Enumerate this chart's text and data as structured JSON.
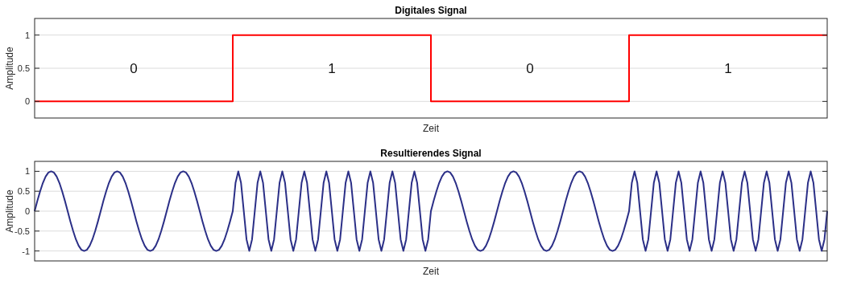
{
  "chart_data": [
    {
      "type": "step",
      "title": "Digitales Signal",
      "xlabel": "Zeit",
      "ylabel": "Amplitude",
      "color": "#ff0000",
      "categories": [
        null,
        null,
        null,
        null,
        null,
        null,
        null,
        null,
        null,
        null,
        null,
        null,
        null,
        null,
        null,
        null,
        null,
        null,
        null,
        null,
        null,
        null,
        null,
        null,
        null,
        null,
        null,
        null,
        null,
        null,
        null,
        null,
        null,
        null,
        null,
        null,
        null,
        null,
        null,
        null,
        null,
        null,
        null,
        null,
        null,
        null,
        null,
        null,
        null
      ],
      "values": [
        0,
        0,
        0,
        0,
        0,
        0,
        0,
        0,
        0,
        0,
        0,
        0,
        1,
        1,
        1,
        1,
        1,
        1,
        1,
        1,
        1,
        1,
        1,
        1,
        0,
        0,
        0,
        0,
        0,
        0,
        0,
        0,
        0,
        0,
        0,
        0,
        1,
        1,
        1,
        1,
        1,
        1,
        1,
        1,
        1,
        1,
        1,
        1,
        1
      ],
      "ylim": [
        -0.25,
        1.25
      ],
      "yticks": [
        0,
        0.5,
        1
      ],
      "grid": "y",
      "tick_labels": "y",
      "annotations": [
        "0",
        "1",
        "0",
        "1"
      ]
    },
    {
      "type": "line",
      "title": "Resultierendes Signal",
      "xlabel": "Zeit",
      "ylabel": "Amplitude",
      "color": "#2b2f87",
      "categories": [
        null,
        null,
        null,
        null,
        null,
        null,
        null,
        null,
        null,
        null,
        null,
        null,
        null,
        null,
        null,
        null,
        null,
        null,
        null,
        null,
        null,
        null,
        null,
        null,
        null,
        null,
        null,
        null,
        null,
        null,
        null,
        null,
        null,
        null,
        null,
        null,
        null,
        null,
        null,
        null,
        null,
        null,
        null,
        null,
        null,
        null,
        null,
        null,
        null,
        null,
        null,
        null,
        null,
        null,
        null,
        null,
        null,
        null,
        null,
        null,
        null,
        null,
        null,
        null,
        null,
        null,
        null,
        null,
        null,
        null,
        null,
        null,
        null,
        null,
        null,
        null,
        null,
        null,
        null,
        null,
        null,
        null,
        null,
        null,
        null,
        null,
        null,
        null,
        null,
        null,
        null,
        null,
        null,
        null,
        null,
        null,
        null,
        null,
        null,
        null,
        null,
        null,
        null,
        null,
        null,
        null,
        null,
        null,
        null,
        null,
        null,
        null,
        null,
        null,
        null,
        null,
        null,
        null,
        null,
        null,
        null,
        null,
        null,
        null,
        null,
        null,
        null,
        null,
        null,
        null,
        null,
        null,
        null,
        null,
        null,
        null,
        null,
        null,
        null,
        null,
        null,
        null,
        null,
        null,
        null,
        null,
        null,
        null,
        null,
        null,
        null,
        null,
        null,
        null,
        null,
        null,
        null,
        null,
        null,
        null,
        null,
        null,
        null,
        null,
        null,
        null,
        null,
        null,
        null,
        null,
        null,
        null,
        null,
        null,
        null,
        null,
        null,
        null,
        null,
        null,
        null,
        null,
        null,
        null,
        null,
        null,
        null,
        null,
        null,
        null,
        null,
        null,
        null,
        null,
        null,
        null,
        null,
        null,
        null,
        null,
        null,
        null,
        null,
        null,
        null,
        null,
        null,
        null,
        null,
        null,
        null,
        null,
        null,
        null,
        null,
        null,
        null,
        null,
        null,
        null,
        null,
        null,
        null,
        null,
        null,
        null,
        null,
        null,
        null,
        null,
        null,
        null,
        null,
        null,
        null,
        null,
        null,
        null,
        null,
        null,
        null,
        null,
        null,
        null,
        null,
        null,
        null,
        null,
        null,
        null,
        null,
        null,
        null,
        null,
        null,
        null,
        null,
        null,
        null,
        null,
        null,
        null,
        null,
        null,
        null,
        null,
        null,
        null,
        null,
        null,
        null,
        null,
        null,
        null,
        null,
        null,
        null,
        null,
        null,
        null,
        null,
        null,
        null,
        null,
        null,
        null,
        null,
        null,
        null
      ],
      "values": [
        0,
        0.26,
        0.5,
        0.71,
        0.87,
        0.97,
        1,
        0.97,
        0.87,
        0.71,
        0.5,
        0.26,
        0,
        -0.26,
        -0.5,
        -0.71,
        -0.87,
        -0.97,
        -1,
        -0.97,
        -0.87,
        -0.71,
        -0.5,
        -0.26,
        0,
        0.26,
        0.5,
        0.71,
        0.87,
        0.97,
        1,
        0.97,
        0.87,
        0.71,
        0.5,
        0.26,
        0,
        -0.26,
        -0.5,
        -0.71,
        -0.87,
        -0.97,
        -1,
        -0.97,
        -0.87,
        -0.71,
        -0.5,
        -0.26,
        0,
        0.26,
        0.5,
        0.71,
        0.87,
        0.97,
        1,
        0.97,
        0.87,
        0.71,
        0.5,
        0.26,
        0,
        -0.26,
        -0.5,
        -0.71,
        -0.87,
        -0.97,
        -1,
        -0.97,
        -0.87,
        -0.71,
        -0.5,
        -0.26,
        0,
        0.71,
        1,
        0.71,
        0,
        -0.71,
        -1,
        -0.71,
        0,
        0.71,
        1,
        0.71,
        0,
        -0.71,
        -1,
        -0.71,
        0,
        0.71,
        1,
        0.71,
        0,
        -0.71,
        -1,
        -0.71,
        0,
        0.71,
        1,
        0.71,
        0,
        -0.71,
        -1,
        -0.71,
        0,
        0.71,
        1,
        0.71,
        0,
        -0.71,
        -1,
        -0.71,
        0,
        0.71,
        1,
        0.71,
        0,
        -0.71,
        -1,
        -0.71,
        0,
        0.71,
        1,
        0.71,
        0,
        -0.71,
        -1,
        -0.71,
        0,
        0.71,
        1,
        0.71,
        0,
        -0.71,
        -1,
        -0.71,
        0,
        0.71,
        1,
        0.71,
        0,
        -0.71,
        -1,
        -0.71,
        0,
        0.26,
        0.5,
        0.71,
        0.87,
        0.97,
        1,
        0.97,
        0.87,
        0.71,
        0.5,
        0.26,
        0,
        -0.26,
        -0.5,
        -0.71,
        -0.87,
        -0.97,
        -1,
        -0.97,
        -0.87,
        -0.71,
        -0.5,
        -0.26,
        0,
        0.26,
        0.5,
        0.71,
        0.87,
        0.97,
        1,
        0.97,
        0.87,
        0.71,
        0.5,
        0.26,
        0,
        -0.26,
        -0.5,
        -0.71,
        -0.87,
        -0.97,
        -1,
        -0.97,
        -0.87,
        -0.71,
        -0.5,
        -0.26,
        0,
        0.26,
        0.5,
        0.71,
        0.87,
        0.97,
        1,
        0.97,
        0.87,
        0.71,
        0.5,
        0.26,
        0,
        -0.26,
        -0.5,
        -0.71,
        -0.87,
        -0.97,
        -1,
        -0.97,
        -0.87,
        -0.71,
        -0.5,
        -0.26,
        0,
        0.71,
        1,
        0.71,
        0,
        -0.71,
        -1,
        -0.71,
        0,
        0.71,
        1,
        0.71,
        0,
        -0.71,
        -1,
        -0.71,
        0,
        0.71,
        1,
        0.71,
        0,
        -0.71,
        -1,
        -0.71,
        0,
        0.71,
        1,
        0.71,
        0,
        -0.71,
        -1,
        -0.71,
        0,
        0.71,
        1,
        0.71,
        0,
        -0.71,
        -1,
        -0.71,
        0,
        0.71,
        1,
        0.71,
        0,
        -0.71,
        -1,
        -0.71,
        0,
        0.71,
        1,
        0.71,
        0,
        -0.71,
        -1,
        -0.71,
        0,
        0.71,
        1,
        0.71,
        0,
        -0.71,
        -1,
        -0.71,
        0,
        0.71,
        1,
        0.71,
        0,
        -0.71,
        -1,
        -0.71,
        0
      ],
      "ylim": [
        -1.25,
        1.25
      ],
      "yticks": [
        -1,
        -0.5,
        0,
        0.5,
        1
      ],
      "grid": "y",
      "tick_labels": "y"
    }
  ]
}
